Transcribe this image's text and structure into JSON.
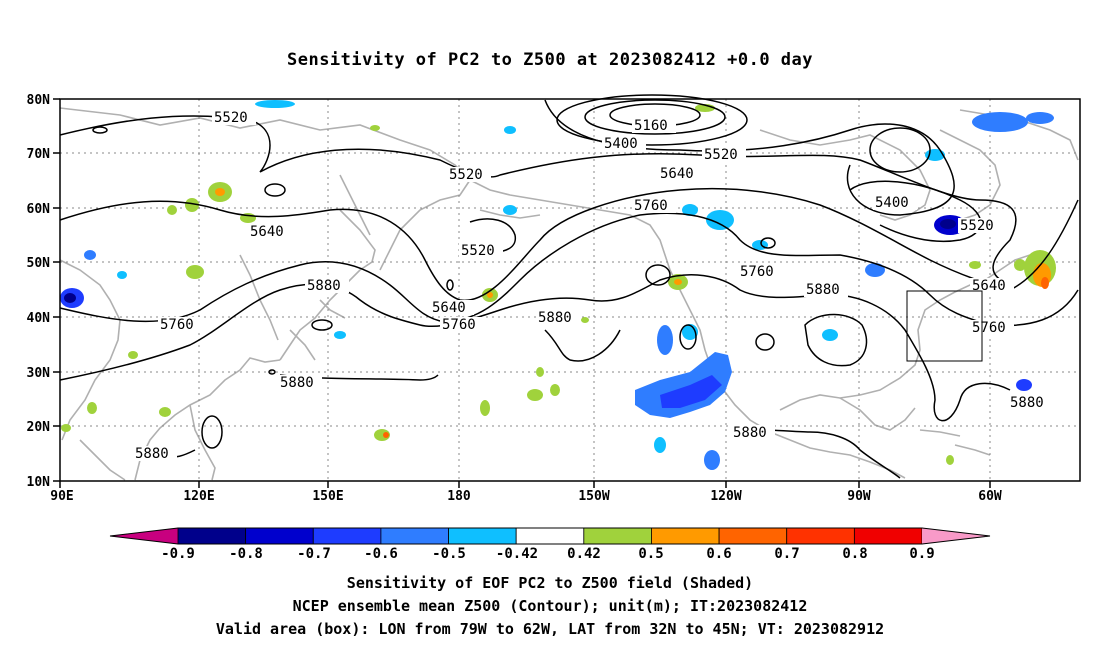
{
  "title": "Sensitivity of PC2 to Z500 at 2023082412 +0.0 day",
  "map": {
    "lat_labels": [
      "80N",
      "70N",
      "60N",
      "50N",
      "40N",
      "30N",
      "20N",
      "10N"
    ],
    "lon_labels": [
      "90E",
      "120E",
      "150E",
      "180",
      "150W",
      "120W",
      "90W",
      "60W"
    ],
    "lon_range": [
      90,
      310
    ],
    "lat_range": [
      10,
      80
    ],
    "grid": "dotted",
    "coastline_color": "#aaaaaa",
    "contour_color": "#000000",
    "contour_labels": [
      "5520",
      "5160",
      "5400",
      "5520",
      "5520",
      "5640",
      "5760",
      "5640",
      "5520",
      "5400",
      "5520",
      "5760",
      "5640",
      "5880",
      "5880",
      "5760",
      "5640",
      "5760",
      "5760",
      "5880",
      "5880",
      "5880",
      "5880",
      "5880"
    ],
    "valid_box": {
      "lon": [
        -79,
        -62
      ],
      "lat": [
        32,
        45
      ]
    }
  },
  "colorbar": {
    "labels": [
      "-0.9",
      "-0.8",
      "-0.7",
      "-0.6",
      "-0.5",
      "-0.42",
      "0.42",
      "0.5",
      "0.6",
      "0.7",
      "0.8",
      "0.9"
    ],
    "colors": [
      "#c8007f",
      "#00008b",
      "#0000cd",
      "#1e3cff",
      "#2f7dff",
      "#0fbfff",
      "#ffffff",
      "#a0d23c",
      "#ff9a00",
      "#ff6400",
      "#ff3200",
      "#f00000",
      "#f89ac8"
    ]
  },
  "captions": {
    "line1": "Sensitivity of EOF PC2 to Z500 field (Shaded)",
    "line2": "NCEP ensemble mean Z500 (Contour); unit(m); IT:2023082412",
    "line3": "Valid area (box): LON from 79W to 62W, LAT from 32N to 45N; VT: 2023082912"
  }
}
